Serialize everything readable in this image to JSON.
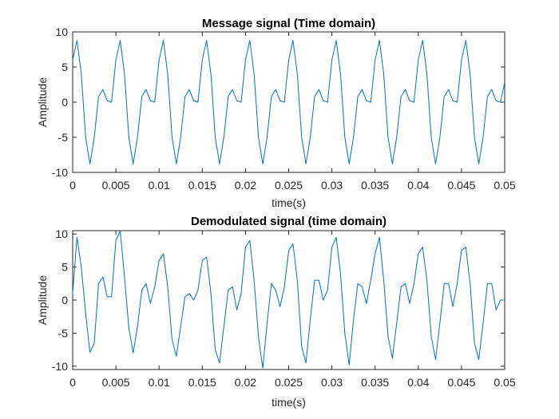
{
  "chart_data": [
    {
      "type": "line",
      "title": "Message signal (Time domain)",
      "xlabel": "time(s)",
      "ylabel": "Amplitude",
      "xlim": [
        0,
        0.05
      ],
      "ylim": [
        -10,
        10
      ],
      "xticks": [
        "0",
        "0.005",
        "0.01",
        "0.015",
        "0.02",
        "0.025",
        "0.03",
        "0.035",
        "0.04",
        "0.045",
        "0.05"
      ],
      "yticks": [
        "10",
        "5",
        "0",
        "-5",
        "-10"
      ],
      "grid": false,
      "series": [
        {
          "color": "#0072BD",
          "x": [
            0,
            0.0005,
            0.001,
            0.0015,
            0.002,
            0.0025,
            0.003,
            0.0035,
            0.004,
            0.0045,
            0.005,
            0.0055,
            0.006,
            0.0065,
            0.007,
            0.0075,
            0.008,
            0.0085,
            0.009,
            0.0095,
            0.01,
            0.0105,
            0.011,
            0.0115,
            0.012,
            0.0125,
            0.013,
            0.0135,
            0.014,
            0.0145,
            0.015,
            0.0155,
            0.016,
            0.0165,
            0.017,
            0.0175,
            0.018,
            0.0185,
            0.019,
            0.0195,
            0.02,
            0.0205,
            0.021,
            0.0215,
            0.022,
            0.0225,
            0.023,
            0.0235,
            0.024,
            0.0245,
            0.025,
            0.0255,
            0.026,
            0.0265,
            0.027,
            0.0275,
            0.028,
            0.0285,
            0.029,
            0.0295,
            0.03,
            0.0305,
            0.031,
            0.0315,
            0.032,
            0.0325,
            0.033,
            0.0335,
            0.034,
            0.0345,
            0.035,
            0.0355,
            0.036,
            0.0365,
            0.037,
            0.0375,
            0.038,
            0.0385,
            0.039,
            0.0395,
            0.04,
            0.0405,
            0.041,
            0.0415,
            0.042,
            0.0425,
            0.043,
            0.0435,
            0.044,
            0.0445,
            0.045,
            0.0455,
            0.046,
            0.0465,
            0.047,
            0.0475,
            0.048,
            0.0485,
            0.049,
            0.0495,
            0.05
          ],
          "y": [
            6.0,
            8.8,
            4.0,
            -5.0,
            -8.8,
            -5.0,
            0.8,
            1.8,
            0.2,
            0.0,
            6.0,
            8.8,
            4.0,
            -5.0,
            -8.8,
            -5.0,
            0.8,
            1.8,
            0.2,
            0.0,
            6.0,
            8.8,
            4.0,
            -5.0,
            -8.8,
            -5.0,
            0.8,
            1.8,
            0.2,
            0.0,
            6.0,
            8.8,
            4.0,
            -5.0,
            -8.8,
            -5.0,
            0.8,
            1.8,
            0.2,
            0.0,
            6.0,
            8.8,
            4.0,
            -5.0,
            -8.8,
            -5.0,
            0.8,
            1.8,
            0.2,
            0.0,
            6.0,
            8.8,
            4.0,
            -5.0,
            -8.8,
            -5.0,
            0.8,
            1.8,
            0.2,
            0.0,
            6.0,
            8.8,
            4.0,
            -5.0,
            -8.8,
            -5.0,
            0.8,
            1.8,
            0.2,
            0.0,
            6.0,
            8.8,
            4.0,
            -5.0,
            -8.8,
            -5.0,
            0.8,
            1.8,
            0.2,
            0.0,
            6.0,
            8.8,
            4.0,
            -5.0,
            -8.8,
            -5.0,
            0.8,
            1.8,
            0.2,
            0.0,
            6.0,
            8.8,
            4.0,
            -5.0,
            -8.8,
            -5.0,
            0.8,
            1.8,
            0.2,
            0.0,
            2.8
          ]
        }
      ]
    },
    {
      "type": "line",
      "title": "Demodulated signal (time domain)",
      "xlabel": "time(s)",
      "ylabel": "Amplitude",
      "xlim": [
        0,
        0.05
      ],
      "ylim": [
        -10.5,
        10.5
      ],
      "xticks": [
        "0",
        "0.005",
        "0.01",
        "0.015",
        "0.02",
        "0.025",
        "0.03",
        "0.035",
        "0.04",
        "0.045",
        "0.05"
      ],
      "yticks": [
        "10",
        "5",
        "0",
        "-5",
        "-10"
      ],
      "grid": false,
      "series": [
        {
          "color": "#0072BD",
          "x": [
            0,
            0.0005,
            0.001,
            0.0015,
            0.002,
            0.0025,
            0.003,
            0.0035,
            0.004,
            0.0045,
            0.005,
            0.0055,
            0.006,
            0.0065,
            0.007,
            0.0075,
            0.008,
            0.0085,
            0.009,
            0.0095,
            0.01,
            0.0105,
            0.011,
            0.0115,
            0.012,
            0.0125,
            0.013,
            0.0135,
            0.014,
            0.0145,
            0.015,
            0.0155,
            0.016,
            0.0165,
            0.017,
            0.0175,
            0.018,
            0.0185,
            0.019,
            0.0195,
            0.02,
            0.0205,
            0.021,
            0.0215,
            0.022,
            0.0225,
            0.023,
            0.0235,
            0.024,
            0.0245,
            0.025,
            0.0255,
            0.026,
            0.0265,
            0.027,
            0.0275,
            0.028,
            0.0285,
            0.029,
            0.0295,
            0.03,
            0.0305,
            0.031,
            0.0315,
            0.032,
            0.0325,
            0.033,
            0.0335,
            0.034,
            0.0345,
            0.035,
            0.0355,
            0.036,
            0.0365,
            0.037,
            0.0375,
            0.038,
            0.0385,
            0.039,
            0.0395,
            0.04,
            0.0405,
            0.041,
            0.0415,
            0.042,
            0.0425,
            0.043,
            0.0435,
            0.044,
            0.0445,
            0.045,
            0.0455,
            0.046,
            0.0465,
            0.047,
            0.0475,
            0.048,
            0.0485,
            0.049,
            0.0495,
            0.05
          ],
          "y": [
            1.0,
            9.5,
            5.0,
            -2.0,
            -7.9,
            -6.5,
            2.5,
            3.5,
            0.5,
            0.5,
            9.0,
            10.5,
            3.5,
            -4.2,
            -8.0,
            -4.0,
            1.5,
            2.5,
            -0.5,
            2.0,
            6.0,
            7.0,
            2.0,
            -6.0,
            -8.5,
            -4.0,
            0.5,
            1.0,
            0.0,
            1.5,
            6.0,
            6.5,
            1.0,
            -7.5,
            -9.5,
            -4.0,
            1.5,
            2.0,
            -1.5,
            1.0,
            8.0,
            9.0,
            3.0,
            -5.5,
            -10.3,
            -3.5,
            2.5,
            1.5,
            -1.0,
            2.0,
            7.5,
            8.5,
            3.0,
            -7.0,
            -9.5,
            -3.0,
            3.0,
            3.0,
            0.0,
            1.5,
            8.0,
            9.5,
            4.0,
            -5.0,
            -9.8,
            -3.0,
            2.5,
            2.0,
            -0.5,
            3.0,
            7.0,
            9.5,
            3.0,
            -5.5,
            -8.8,
            -3.5,
            2.0,
            2.5,
            -0.5,
            2.5,
            7.0,
            8.0,
            3.0,
            -5.5,
            -9.0,
            -3.5,
            2.5,
            2.5,
            -1.0,
            2.5,
            7.5,
            8.0,
            2.5,
            -6.5,
            -9.0,
            -3.5,
            2.5,
            2.5,
            -1.5,
            0.0,
            0.0
          ]
        }
      ]
    }
  ]
}
